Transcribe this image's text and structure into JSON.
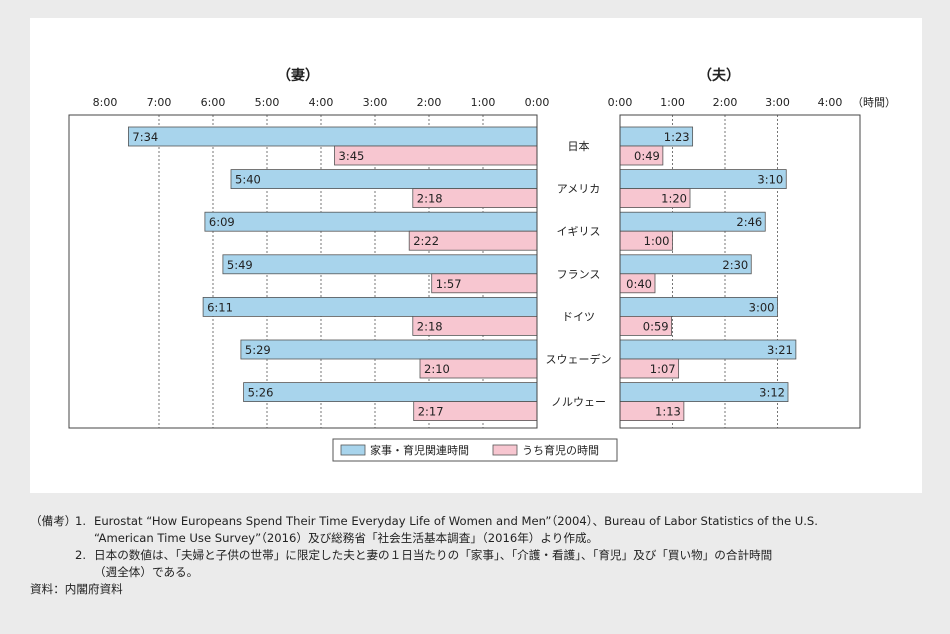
{
  "chart_data": {
    "type": "bar",
    "wife": {
      "title": "（妻）",
      "ticks": [
        "8:00",
        "7:00",
        "6:00",
        "5:00",
        "4:00",
        "3:00",
        "2:00",
        "1:00",
        "0:00"
      ],
      "xlim_minutes": [
        0,
        480
      ],
      "reversed": true
    },
    "husband": {
      "title": "（夫）",
      "ticks": [
        "0:00",
        "1:00",
        "2:00",
        "3:00",
        "4:00"
      ],
      "unit": "（時間）",
      "xlim_minutes": [
        0,
        240
      ]
    },
    "categories": [
      "日本",
      "アメリカ",
      "イギリス",
      "フランス",
      "ドイツ",
      "スウェーデン",
      "ノルウェー"
    ],
    "series": [
      {
        "name": "家事・育児関連時間",
        "color": "#a8d4ec",
        "wife": [
          "7:34",
          "5:40",
          "6:09",
          "5:49",
          "6:11",
          "5:29",
          "5:26"
        ],
        "husband": [
          "1:23",
          "3:10",
          "2:46",
          "2:30",
          "3:00",
          "3:21",
          "3:12"
        ]
      },
      {
        "name": "うち育児の時間",
        "color": "#f7c6d0",
        "wife": [
          "3:45",
          "2:18",
          "2:22",
          "1:57",
          "2:18",
          "2:10",
          "2:17"
        ],
        "husband": [
          "0:49",
          "1:20",
          "1:00",
          "0:40",
          "0:59",
          "1:07",
          "1:13"
        ]
      }
    ],
    "legend_position": "bottom-center",
    "grid": "dashed vertical"
  },
  "notes": {
    "prefix": "（備考）",
    "items": [
      {
        "num": "1.",
        "lines": [
          "Eurostat “How Europeans Spend Their Time Everyday Life of Women and Men”（2004）、Bureau of Labor Statistics of the U.S.",
          "“American Time Use Survey”（2016）及び総務省「社会生活基本調査」（2016年）より作成。"
        ]
      },
      {
        "num": "2.",
        "lines": [
          "日本の数値は、「夫婦と子供の世帯」に限定した夫と妻の１日当たりの「家事」、「介護・看護」、「育児」及び「買い物」の合計時間",
          "（週全体）である。"
        ]
      }
    ],
    "source": "資料：内閣府資料"
  }
}
